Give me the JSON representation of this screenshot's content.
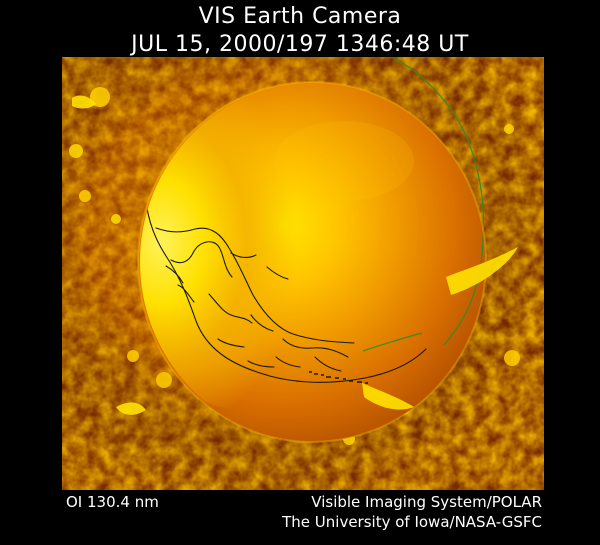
{
  "header": {
    "title": "VIS Earth Camera",
    "timestamp": "JUL 15, 2000/197 1346:48 UT"
  },
  "footer": {
    "wavelength": "OI  130.4 nm",
    "system": "Visible Imaging System/POLAR",
    "institution": "The University of Iowa/NASA-GSFC"
  },
  "image": {
    "palette": {
      "dark": "#6f2200",
      "mid": "#c85a00",
      "orange": "#f59a00",
      "yellow": "#ffe100",
      "bright": "#fff54a",
      "outline": "#1a1a00",
      "green": "#2d8b2f"
    }
  }
}
